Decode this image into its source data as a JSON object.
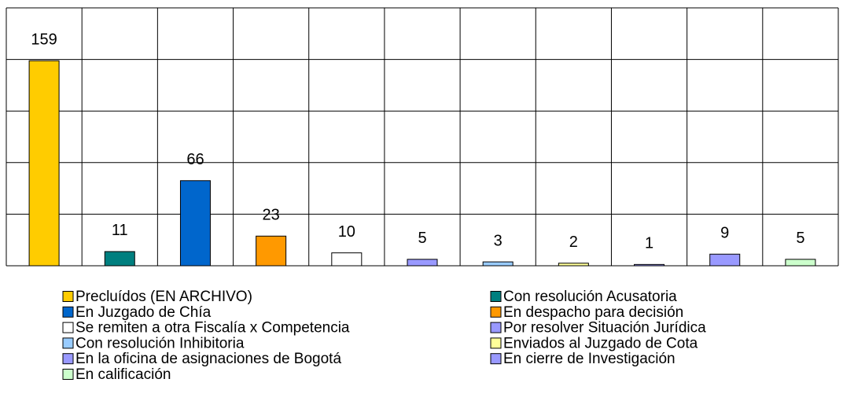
{
  "chart_data": {
    "type": "bar",
    "categories": [
      "Precluídos (EN ARCHIVO)",
      "Con resolución Acusatoria",
      "En Juzgado de Chía",
      "En despacho para decisión",
      "Se remiten a otra Fiscalía x Competencia",
      "Por resolver Situación Jurídica",
      "Con resolución Inhibitoria",
      "Enviados al Juzgado de Cota",
      "En la oficina de asignaciones de Bogotá",
      "En cierre de Investigación",
      "En calificación"
    ],
    "values": [
      159,
      11,
      66,
      23,
      10,
      5,
      3,
      2,
      1,
      9,
      5
    ],
    "colors": [
      "#ffcc00",
      "#007f7f",
      "#0066cc",
      "#ff9900",
      "#ffffff",
      "#9999ff",
      "#99ccff",
      "#ffff99",
      "#9999ff",
      "#9999ff",
      "#ccffcc"
    ],
    "ylim": [
      0,
      200
    ],
    "yticks": [
      0,
      40,
      80,
      120,
      160,
      200
    ],
    "grid": true
  }
}
